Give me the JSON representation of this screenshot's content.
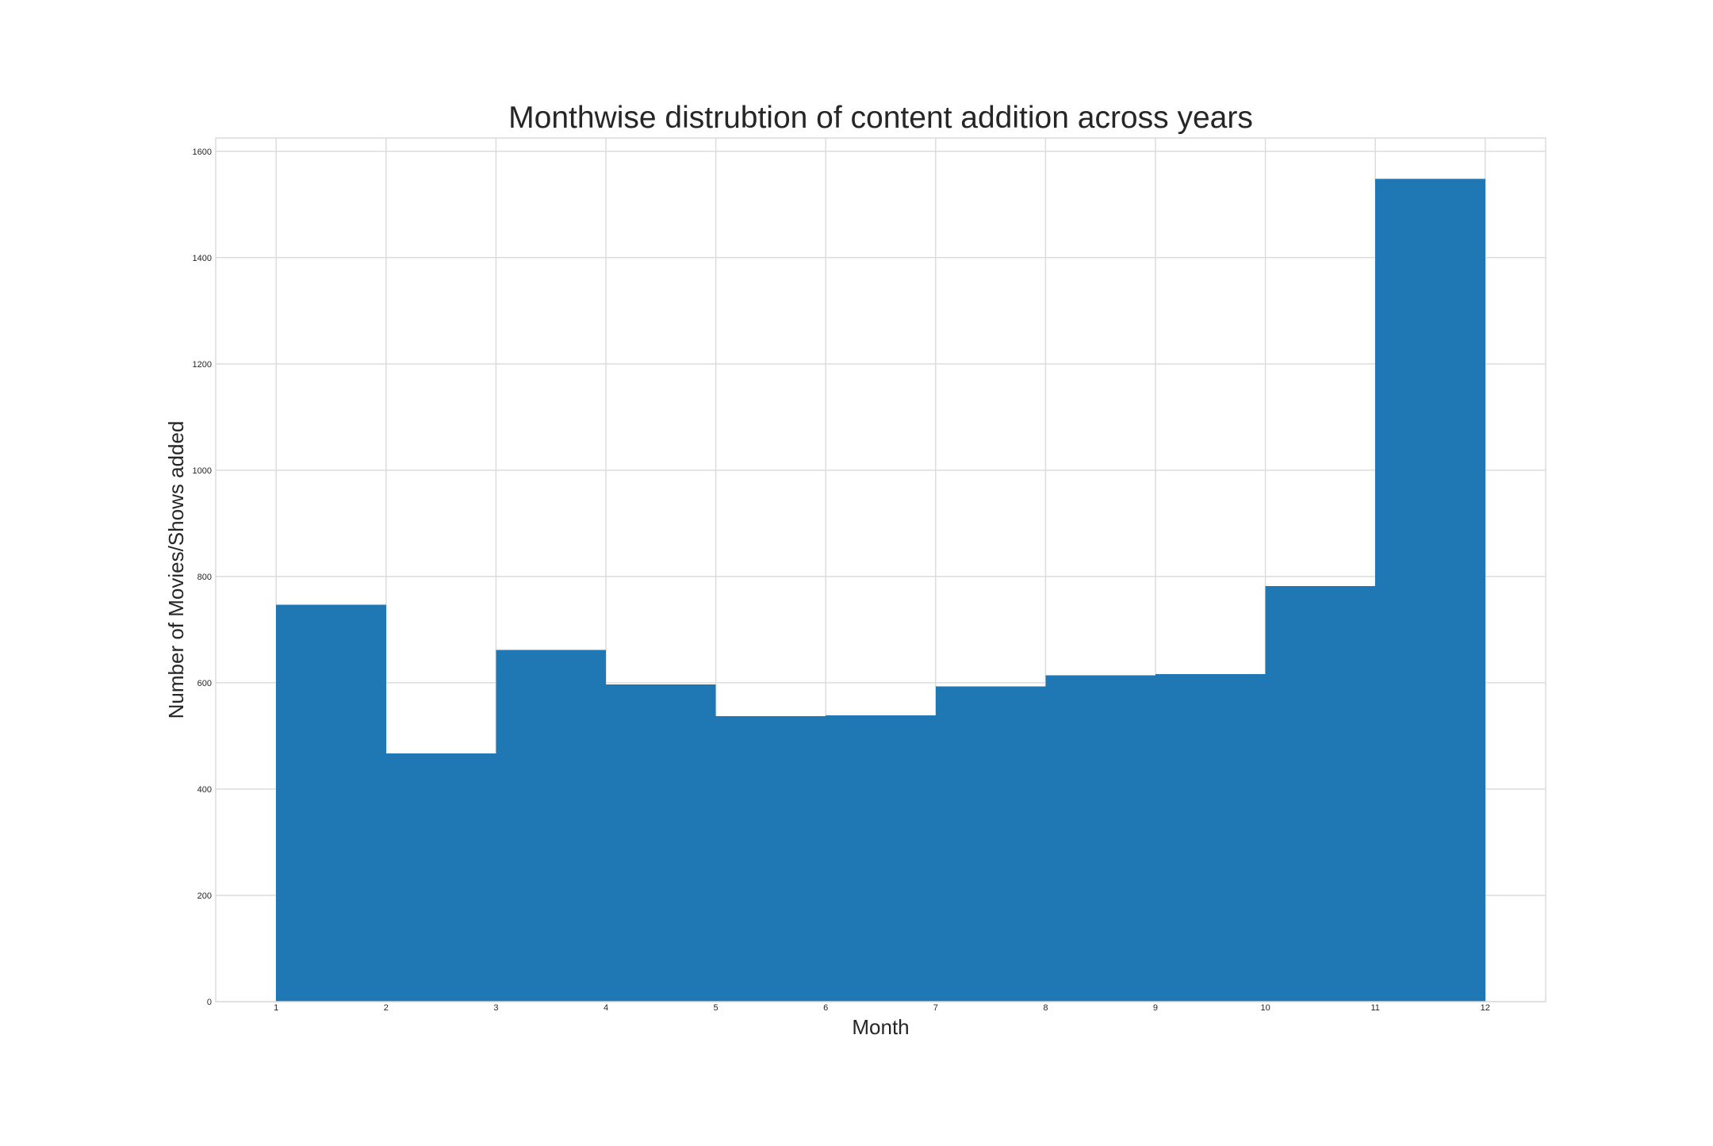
{
  "chart_data": {
    "type": "histogram",
    "title": "Monthwise distrubtion of content addition across years",
    "xlabel": "Month",
    "ylabel": "Number of Movies/Shows added",
    "bin_edges": [
      1,
      2,
      3,
      4,
      5,
      6,
      7,
      8,
      9,
      10,
      11,
      12
    ],
    "values": [
      747,
      467,
      662,
      597,
      537,
      539,
      593,
      614,
      616,
      782,
      1548
    ],
    "xticks": [
      1,
      2,
      3,
      4,
      5,
      6,
      7,
      8,
      9,
      10,
      11,
      12
    ],
    "yticks": [
      0,
      200,
      400,
      600,
      800,
      1000,
      1200,
      1400,
      1600
    ],
    "xlim": [
      0.45,
      12.55
    ],
    "ylim": [
      0,
      1625
    ],
    "bar_color": "#1f77b4",
    "grid": true,
    "legend": null
  }
}
